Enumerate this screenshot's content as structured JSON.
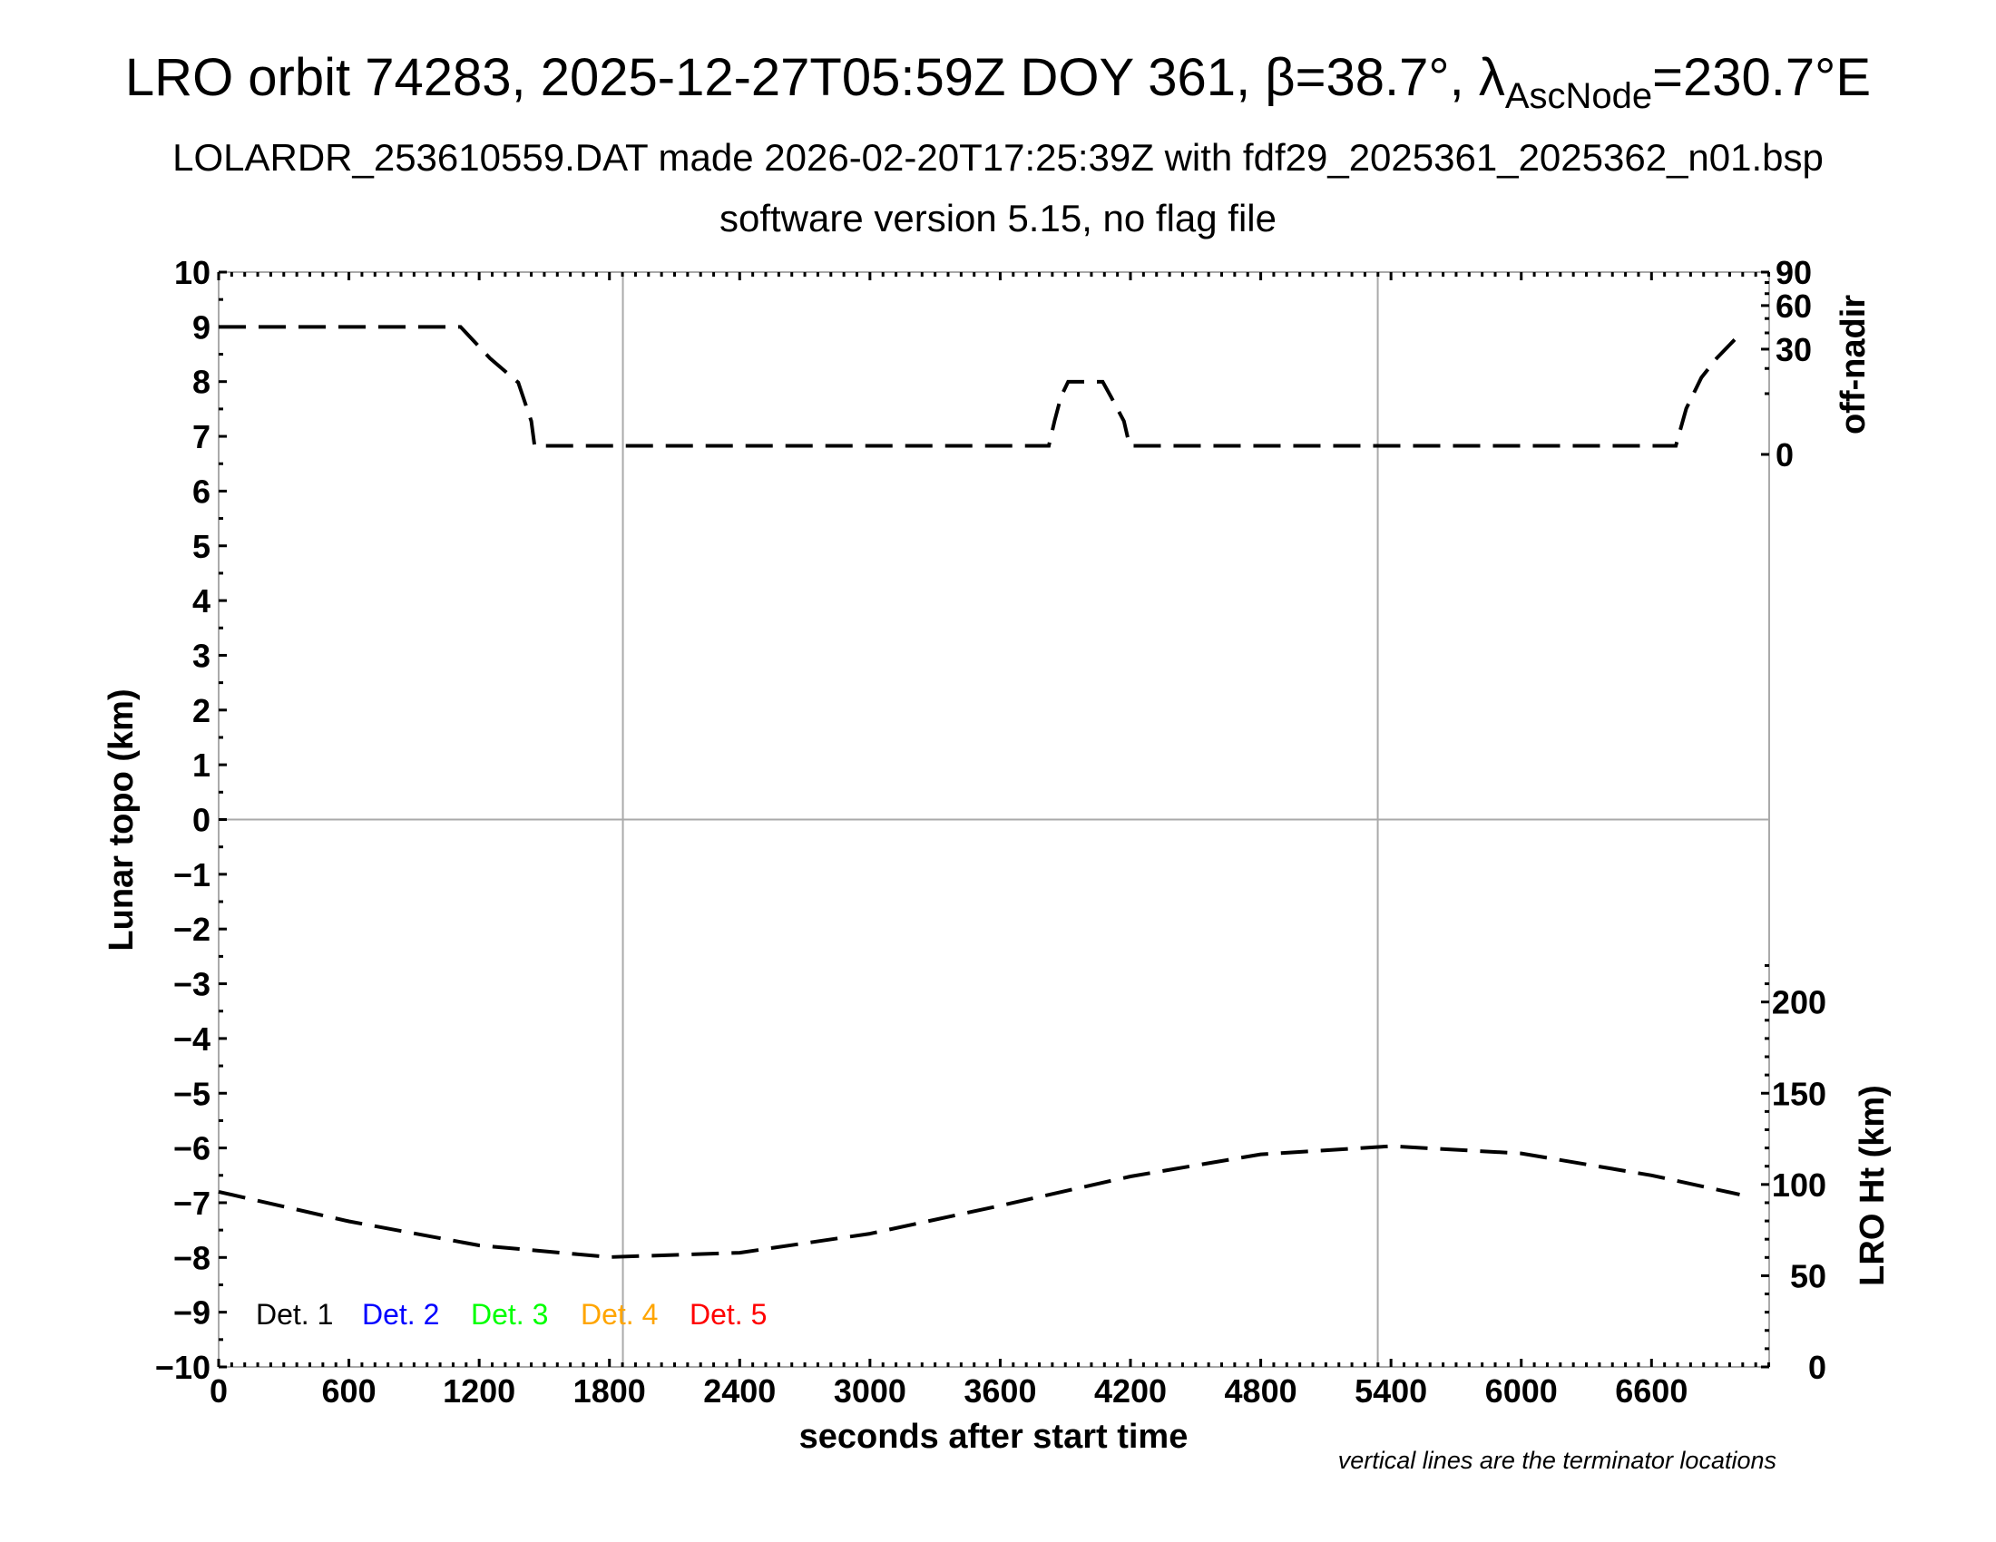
{
  "chart_data": {
    "type": "line",
    "title": {
      "main": "LRO orbit 74283, 2025-12-27T05:59Z DOY 361, β=38.7°, λ",
      "sub": "AscNode",
      "tail": "=230.7°E"
    },
    "subtitle": "LOLARDR_253610559.DAT made 2026-02-20T17:25:39Z with fdf29_2025361_2025362_n01.bsp",
    "subtitle2": "software version 5.15, no flag file",
    "xlabel": "seconds after start time",
    "ylabel_left": "Lunar topo (km)",
    "ylabel_right_top": "off-nadir",
    "ylabel_right_bottom": "LRO Ht (km)",
    "footnote": "vertical lines are the terminator locations",
    "xlim": [
      0,
      7142
    ],
    "ylim_left": [
      -10,
      10
    ],
    "x_ticks": [
      "0",
      "600",
      "1200",
      "1800",
      "2400",
      "3000",
      "3600",
      "4200",
      "4800",
      "5400",
      "6000",
      "6600"
    ],
    "y_ticks_left": [
      "10",
      "9",
      "8",
      "7",
      "6",
      "5",
      "4",
      "3",
      "2",
      "1",
      "0",
      "−1",
      "−2",
      "−3",
      "−4",
      "−5",
      "−6",
      "−7",
      "−8",
      "−9",
      "−10"
    ],
    "off_nadir_ticks": [
      "90",
      "60",
      "30",
      "0"
    ],
    "off_nadir_scale": "sqrt",
    "ht_ticks": [
      "200",
      "150",
      "100",
      "50",
      "0"
    ],
    "ht_range": [
      0,
      600
    ],
    "terminators": [
      1862,
      5339
    ],
    "legend": [
      {
        "label": "Det. 1",
        "color": "#000000"
      },
      {
        "label": "Det. 2",
        "color": "#0000ff"
      },
      {
        "label": "Det. 3",
        "color": "#00ff00"
      },
      {
        "label": "Det. 4",
        "color": "#ffa500"
      },
      {
        "label": "Det. 5",
        "color": "#ff0000"
      }
    ],
    "series": [
      {
        "axis": "off-nadir (deg)",
        "style": "dashed",
        "x": [
          0,
          1114,
          1250,
          1380,
          1440,
          1455,
          3824,
          3850,
          3880,
          3913,
          4072,
          4110,
          4170,
          4196,
          6712,
          6760,
          6830,
          6900,
          7006
        ],
        "y": [
          44,
          44,
          25,
          14,
          3,
          0.2,
          0.2,
          3,
          9,
          14.3,
          14.3,
          9,
          3,
          0.2,
          0.2,
          5.7,
          16,
          25,
          39
        ]
      },
      {
        "axis": "LRO Ht (km)",
        "style": "dashed",
        "x": [
          0,
          600,
          1200,
          1800,
          2400,
          3000,
          3600,
          4200,
          4800,
          5400,
          6000,
          6600,
          7006
        ],
        "y": [
          96,
          79.8,
          66.6,
          60.2,
          62.6,
          73,
          88.4,
          104.4,
          116.5,
          121,
          117,
          105,
          94.5
        ]
      }
    ]
  }
}
